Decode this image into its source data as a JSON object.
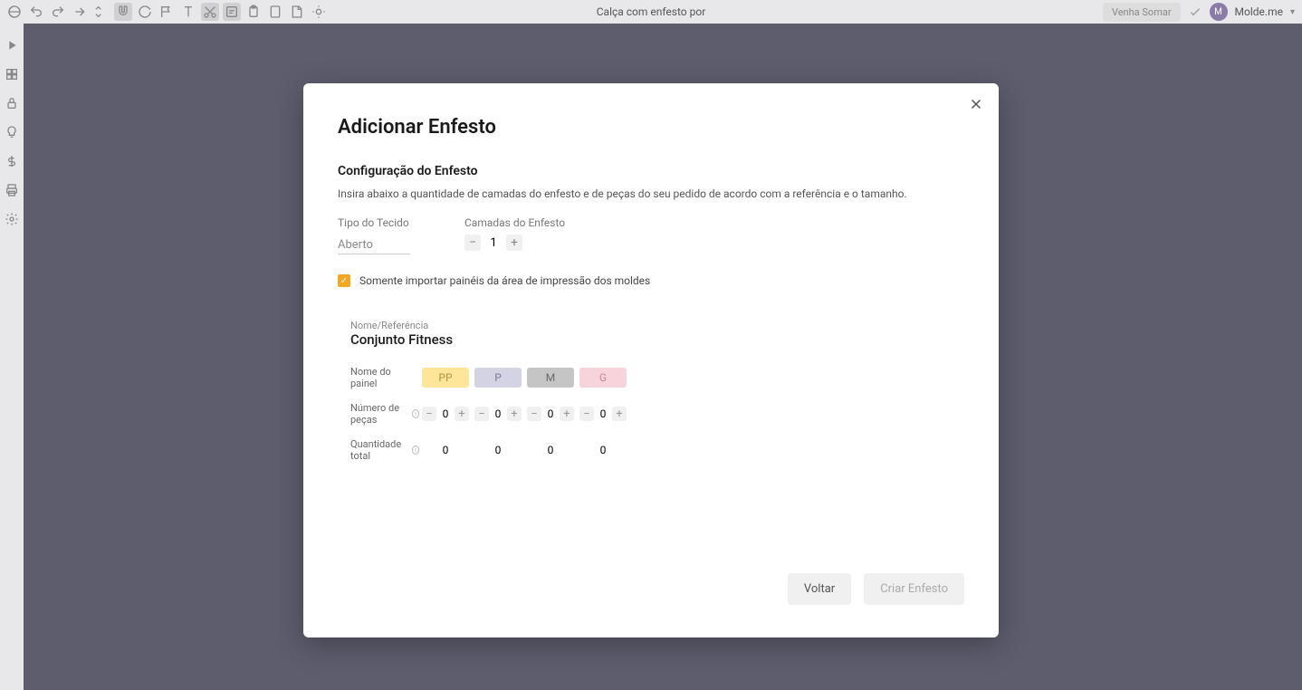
{
  "topbar": {
    "title": "Calça com enfesto por",
    "button": "Venha Somar",
    "user_initial": "M",
    "user_name": "Molde.me"
  },
  "modal": {
    "title": "Adicionar Enfesto",
    "config_heading": "Configuração do Enfesto",
    "config_desc": "Insira abaixo a quantidade de camadas do enfesto e de peças do seu pedido de acordo com a referência e o tamanho.",
    "field_tipo": "Tipo do Tecido",
    "field_tipo_value": "Aberto",
    "field_camadas": "Camadas do Enfesto",
    "camadas_value": "1",
    "checkbox_label": "Somente importar painéis da área de impressão dos moldes",
    "ref_label": "Nome/Referência",
    "ref_value": "Conjunto Fitness",
    "row_nome": "Nome do painel",
    "row_numero": "Número de peças",
    "row_total": "Quantidade total",
    "sizes": [
      {
        "label": "PP",
        "bg": "#fde59a",
        "fg": "#b8923b",
        "qty": "0",
        "total": "0"
      },
      {
        "label": "P",
        "bg": "#d3d3e3",
        "fg": "#7a7a9a",
        "qty": "0",
        "total": "0"
      },
      {
        "label": "M",
        "bg": "#c5c5c5",
        "fg": "#6a6a6a",
        "qty": "0",
        "total": "0"
      },
      {
        "label": "G",
        "bg": "#f7d3db",
        "fg": "#c98a96",
        "qty": "0",
        "total": "0"
      }
    ],
    "btn_voltar": "Voltar",
    "btn_criar": "Criar Enfesto"
  }
}
